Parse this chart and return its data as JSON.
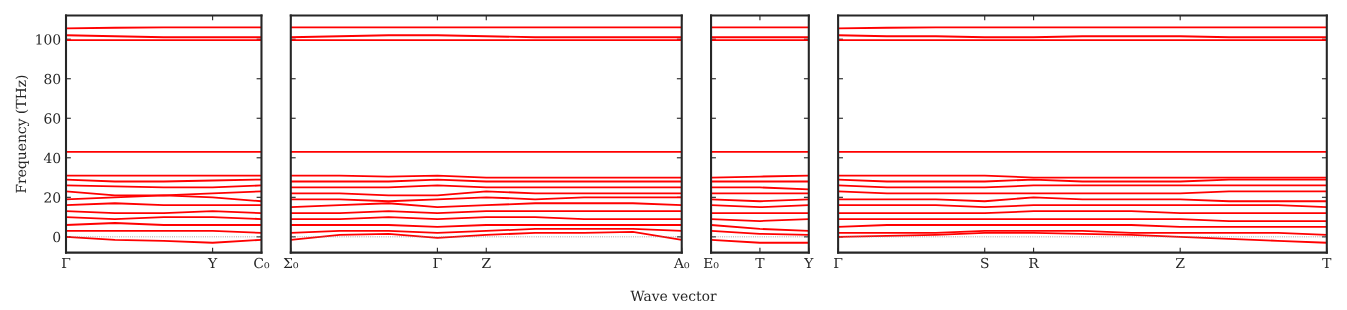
{
  "chart_data": [
    {
      "type": "line",
      "ylabel": "Frequency (THz)",
      "ylim": [
        -8,
        112
      ],
      "yticks": [
        0,
        20,
        40,
        60,
        80,
        100
      ],
      "categories": [
        "Γ",
        null,
        null,
        "Y",
        "C₀"
      ],
      "grid": false,
      "marker": "none",
      "line_style": "solid",
      "ref_lines": [
        {
          "axis": "y",
          "value": 0,
          "color": "#808080",
          "line_style": "dotted"
        }
      ],
      "series": [
        {
          "color": "#ff0000",
          "values": [
            105.5,
            105.8,
            106,
            106,
            106
          ]
        },
        {
          "color": "#ff0000",
          "values": [
            102,
            101.5,
            101,
            101,
            101
          ]
        },
        {
          "color": "#ff0000",
          "values": [
            99.5,
            99.5,
            99.5,
            99.5,
            99.5
          ]
        },
        {
          "color": "#ff0000",
          "values": [
            43,
            43,
            43,
            43,
            43
          ]
        },
        {
          "color": "#ff0000",
          "values": [
            31,
            31,
            31,
            31,
            31
          ]
        },
        {
          "color": "#ff0000",
          "values": [
            29,
            28,
            28,
            28.5,
            29
          ]
        },
        {
          "color": "#ff0000",
          "values": [
            26,
            25.5,
            25,
            25,
            26
          ]
        },
        {
          "color": "#ff0000",
          "values": [
            23,
            21,
            21,
            22,
            23
          ]
        },
        {
          "color": "#ff0000",
          "values": [
            19,
            20,
            21,
            20,
            18
          ]
        },
        {
          "color": "#ff0000",
          "values": [
            16,
            17,
            16,
            16,
            16
          ]
        },
        {
          "color": "#ff0000",
          "values": [
            13,
            12,
            12,
            13,
            12
          ]
        },
        {
          "color": "#ff0000",
          "values": [
            10,
            9,
            10,
            10,
            9
          ]
        },
        {
          "color": "#ff0000",
          "values": [
            6,
            7,
            6,
            6,
            6
          ]
        },
        {
          "color": "#ff0000",
          "values": [
            3,
            3,
            3,
            3,
            2
          ]
        },
        {
          "color": "#ff0000",
          "values": [
            0,
            -1.5,
            -2,
            -3,
            -1.5
          ]
        }
      ]
    },
    {
      "type": "line",
      "ylim": [
        -8,
        112
      ],
      "yticks": [
        0,
        20,
        40,
        60,
        80,
        100
      ],
      "tick_labels": "x",
      "xlabel": "Wave vector",
      "categories": [
        "Σ₀",
        null,
        null,
        "Γ",
        "Z",
        null,
        null,
        null,
        "A₀"
      ],
      "grid": false,
      "marker": "none",
      "line_style": "solid",
      "ref_lines": [
        {
          "axis": "y",
          "value": 0,
          "color": "#808080",
          "line_style": "dotted"
        }
      ],
      "series": [
        {
          "color": "#ff0000",
          "values": [
            106,
            106,
            106,
            106,
            106,
            106,
            106,
            106,
            106
          ]
        },
        {
          "color": "#ff0000",
          "values": [
            101,
            101.5,
            102,
            102,
            101.5,
            101,
            101,
            101,
            101
          ]
        },
        {
          "color": "#ff0000",
          "values": [
            99.5,
            99.5,
            99.5,
            99.5,
            99.5,
            99.5,
            99.5,
            99.5,
            99.5
          ]
        },
        {
          "color": "#ff0000",
          "values": [
            43,
            43,
            43,
            43,
            43,
            43,
            43,
            43,
            43
          ]
        },
        {
          "color": "#ff0000",
          "values": [
            31,
            31,
            30.5,
            31,
            30,
            30,
            30,
            30,
            30
          ]
        },
        {
          "color": "#ff0000",
          "values": [
            28,
            28,
            28,
            29,
            28,
            28,
            28,
            28,
            28
          ]
        },
        {
          "color": "#ff0000",
          "values": [
            25,
            25,
            25,
            26,
            25,
            25,
            25,
            25,
            25
          ]
        },
        {
          "color": "#ff0000",
          "values": [
            22,
            22,
            21,
            21,
            23,
            22,
            22,
            22,
            22
          ]
        },
        {
          "color": "#ff0000",
          "values": [
            19,
            19,
            18,
            19,
            20,
            19,
            20,
            20,
            20
          ]
        },
        {
          "color": "#ff0000",
          "values": [
            15,
            16,
            17,
            15,
            16,
            17,
            17,
            17,
            16
          ]
        },
        {
          "color": "#ff0000",
          "values": [
            12,
            12,
            13,
            12,
            13,
            13,
            13,
            13,
            13
          ]
        },
        {
          "color": "#ff0000",
          "values": [
            9,
            9,
            10,
            9,
            10,
            10,
            9,
            9,
            9
          ]
        },
        {
          "color": "#ff0000",
          "values": [
            6,
            6,
            6,
            5,
            6,
            6,
            6,
            6,
            6
          ]
        },
        {
          "color": "#ff0000",
          "values": [
            2,
            3,
            3,
            2,
            3,
            4,
            4,
            4,
            3
          ]
        },
        {
          "color": "#ff0000",
          "values": [
            -1.5,
            1,
            1.5,
            -0.5,
            1,
            2,
            2,
            2.5,
            -1.5
          ]
        }
      ]
    },
    {
      "type": "line",
      "ylim": [
        -8,
        112
      ],
      "yticks": [
        0,
        20,
        40,
        60,
        80,
        100
      ],
      "tick_labels": "x",
      "categories": [
        "E₀",
        "T",
        "Y"
      ],
      "grid": false,
      "marker": "none",
      "line_style": "solid",
      "ref_lines": [
        {
          "axis": "y",
          "value": 0,
          "color": "#808080",
          "line_style": "dotted"
        }
      ],
      "series": [
        {
          "color": "#ff0000",
          "values": [
            106,
            106,
            106
          ]
        },
        {
          "color": "#ff0000",
          "values": [
            101,
            101,
            101
          ]
        },
        {
          "color": "#ff0000",
          "values": [
            99.5,
            99.5,
            99.5
          ]
        },
        {
          "color": "#ff0000",
          "values": [
            43,
            43,
            43
          ]
        },
        {
          "color": "#ff0000",
          "values": [
            30,
            30.5,
            31
          ]
        },
        {
          "color": "#ff0000",
          "values": [
            28,
            28,
            28
          ]
        },
        {
          "color": "#ff0000",
          "values": [
            25,
            25,
            24
          ]
        },
        {
          "color": "#ff0000",
          "values": [
            22,
            22,
            22
          ]
        },
        {
          "color": "#ff0000",
          "values": [
            19,
            18,
            19
          ]
        },
        {
          "color": "#ff0000",
          "values": [
            16,
            15,
            16
          ]
        },
        {
          "color": "#ff0000",
          "values": [
            12,
            12,
            12
          ]
        },
        {
          "color": "#ff0000",
          "values": [
            9,
            8,
            9
          ]
        },
        {
          "color": "#ff0000",
          "values": [
            6,
            4,
            3
          ]
        },
        {
          "color": "#ff0000",
          "values": [
            3,
            1.5,
            1
          ]
        },
        {
          "color": "#ff0000",
          "values": [
            -1.5,
            -3,
            -3
          ]
        }
      ]
    },
    {
      "type": "line",
      "ylim": [
        -8,
        112
      ],
      "yticks": [
        0,
        20,
        40,
        60,
        80,
        100
      ],
      "tick_labels": "x",
      "categories": [
        "Γ",
        null,
        null,
        "S",
        "R",
        null,
        null,
        "Z",
        null,
        null,
        "T"
      ],
      "grid": false,
      "marker": "none",
      "line_style": "solid",
      "ref_lines": [
        {
          "axis": "y",
          "value": 0,
          "color": "#808080",
          "line_style": "dotted"
        }
      ],
      "series": [
        {
          "color": "#ff0000",
          "values": [
            105.5,
            105.8,
            106,
            106,
            106,
            106,
            106,
            106,
            106,
            106,
            106
          ]
        },
        {
          "color": "#ff0000",
          "values": [
            102,
            101.5,
            101.5,
            101,
            101,
            101.5,
            101.5,
            101.5,
            101,
            101,
            101
          ]
        },
        {
          "color": "#ff0000",
          "values": [
            99.5,
            99.5,
            99.5,
            99.5,
            99.5,
            99.5,
            99.5,
            99.5,
            99.5,
            99.5,
            99.5
          ]
        },
        {
          "color": "#ff0000",
          "values": [
            43,
            43,
            43,
            43,
            43,
            43,
            43,
            43,
            43,
            43,
            43
          ]
        },
        {
          "color": "#ff0000",
          "values": [
            31,
            31,
            31,
            31,
            30,
            30,
            30,
            30,
            30,
            30,
            30
          ]
        },
        {
          "color": "#ff0000",
          "values": [
            29,
            28,
            28,
            28,
            29,
            28,
            28,
            28,
            29,
            29,
            29
          ]
        },
        {
          "color": "#ff0000",
          "values": [
            26,
            25,
            25,
            25,
            26,
            26,
            26,
            26,
            26,
            26,
            26
          ]
        },
        {
          "color": "#ff0000",
          "values": [
            23,
            22,
            22,
            22,
            22,
            22,
            22,
            22,
            23,
            23,
            23
          ]
        },
        {
          "color": "#ff0000",
          "values": [
            19,
            19,
            19,
            18,
            20,
            19,
            19,
            19,
            18,
            18,
            18
          ]
        },
        {
          "color": "#ff0000",
          "values": [
            16,
            16,
            16,
            15,
            16,
            16,
            16,
            16,
            16,
            16,
            15
          ]
        },
        {
          "color": "#ff0000",
          "values": [
            12,
            12,
            12,
            12,
            13,
            13,
            13,
            12,
            12,
            12,
            12
          ]
        },
        {
          "color": "#ff0000",
          "values": [
            9,
            9,
            9,
            9,
            9,
            9,
            9,
            9,
            8,
            8,
            8
          ]
        },
        {
          "color": "#ff0000",
          "values": [
            5,
            6,
            6,
            6,
            6,
            6,
            6,
            5,
            5,
            5,
            5
          ]
        },
        {
          "color": "#ff0000",
          "values": [
            2,
            2,
            2,
            3,
            3,
            3,
            2,
            2,
            2,
            2,
            1
          ]
        },
        {
          "color": "#ff0000",
          "values": [
            0,
            0.5,
            1,
            2,
            2,
            1.5,
            1,
            0,
            -1,
            -2,
            -3
          ]
        }
      ]
    }
  ]
}
